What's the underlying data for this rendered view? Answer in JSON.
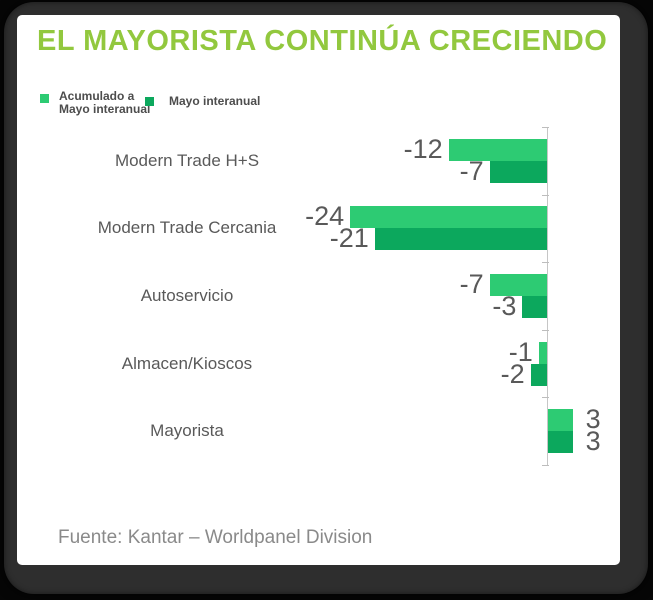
{
  "title": {
    "text": "EL MAYORISTA CONTINÚA CRECIENDO",
    "color": "#92C83E"
  },
  "legend": {
    "items": [
      {
        "label": "Acumulado a Mayo interanual",
        "color": "#2DCB73"
      },
      {
        "label": "Mayo interanual",
        "color": "#0CA85D"
      }
    ]
  },
  "chart_data": {
    "type": "bar",
    "orientation": "horizontal",
    "baseline": 0,
    "value_axis_side": "right",
    "grid": false,
    "legend_position": "top-left",
    "categories": [
      "Modern Trade H+S",
      "Modern Trade Cercania",
      "Autoservicio",
      "Almacen/Kioscos",
      "Mayorista"
    ],
    "series": [
      {
        "name": "Acumulado a Mayo interanual",
        "color": "#2DCB73",
        "values": [
          -12,
          -24,
          -7,
          -1,
          3
        ]
      },
      {
        "name": "Mayo interanual",
        "color": "#0CA85D",
        "values": [
          -7,
          -21,
          -3,
          -2,
          3
        ]
      }
    ],
    "data_labels": true,
    "data_label_color": "#595959",
    "xlim": [
      -26,
      4
    ]
  },
  "source": {
    "text": "Fuente: Kantar – Worldpanel Division"
  }
}
